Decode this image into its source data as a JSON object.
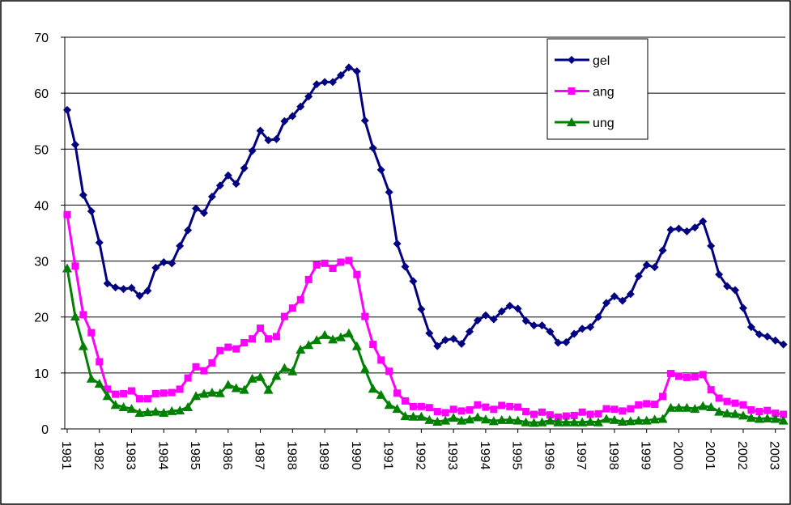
{
  "chart_data": {
    "type": "line",
    "categories": [
      "1981",
      null,
      null,
      null,
      "1982",
      null,
      null,
      null,
      "1983",
      null,
      null,
      null,
      "1984",
      null,
      null,
      null,
      "1985",
      null,
      null,
      null,
      "1986",
      null,
      null,
      null,
      "1987",
      null,
      null,
      null,
      "1988",
      null,
      null,
      null,
      "1989",
      null,
      null,
      null,
      "1990",
      null,
      null,
      null,
      "1991",
      null,
      null,
      null,
      "1992",
      null,
      null,
      null,
      "1993",
      null,
      null,
      null,
      "1994",
      null,
      null,
      null,
      "1995",
      null,
      null,
      null,
      "1996",
      null,
      null,
      null,
      "1997",
      null,
      null,
      null,
      "1998",
      null,
      null,
      null,
      "1999",
      null,
      null,
      null,
      "2000",
      null,
      null,
      null,
      "2001",
      null,
      null,
      null,
      "2002",
      null,
      null,
      null,
      "2003",
      null
    ],
    "series": [
      {
        "name": "gel",
        "color": "#000080",
        "marker": "diamond",
        "values": [
          57,
          50.8,
          41.8,
          38.9,
          33.3,
          26,
          25.3,
          25,
          25.2,
          23.8,
          24.7,
          28.8,
          29.8,
          29.6,
          32.7,
          35.5,
          39.4,
          38.6,
          41.5,
          43.5,
          45.3,
          43.8,
          46.6,
          49.7,
          53.3,
          51.6,
          51.8,
          55,
          55.9,
          57.6,
          59.4,
          61.6,
          62,
          62,
          63.2,
          64.6,
          63.9,
          55.1,
          50.2,
          46.3,
          42.3,
          33.1,
          29,
          26.4,
          21.4,
          17.1,
          14.8,
          15.9,
          16.1,
          15.2,
          17.4,
          19.4,
          20.3,
          19.6,
          21,
          22,
          21.5,
          19.3,
          18.5,
          18.5,
          17.4,
          15.4,
          15.5,
          17,
          17.9,
          18.2,
          20,
          22.5,
          23.7,
          22.9,
          24.1,
          27.3,
          29.3,
          28.9,
          31.9,
          35.6,
          35.8,
          35.3,
          36,
          37.1,
          32.7,
          27.6,
          25.5,
          24.8,
          21.6,
          18.2,
          16.9,
          16.5,
          15.8,
          15.1
        ]
      },
      {
        "name": "ang",
        "color": "#ff00ff",
        "marker": "square",
        "values": [
          38.3,
          29.1,
          20.4,
          17.2,
          12,
          7.1,
          6.2,
          6.3,
          6.8,
          5.4,
          5.4,
          6.3,
          6.4,
          6.5,
          7.1,
          9.1,
          11.1,
          10.4,
          11.8,
          14,
          14.6,
          14.3,
          15.4,
          16.1,
          18,
          16.1,
          16.5,
          20.1,
          21.6,
          23.1,
          26.7,
          29.3,
          29.6,
          28.7,
          29.8,
          30.1,
          27.6,
          20.1,
          15.1,
          12.3,
          10.3,
          6.4,
          5,
          4,
          4,
          3.8,
          3.1,
          2.9,
          3.5,
          3.2,
          3.4,
          4.3,
          3.9,
          3.5,
          4.2,
          4,
          3.9,
          3.1,
          2.6,
          3,
          2.5,
          2.1,
          2.3,
          2.4,
          3,
          2.6,
          2.7,
          3.6,
          3.5,
          3.2,
          3.6,
          4.3,
          4.5,
          4.4,
          5.8,
          9.9,
          9.4,
          9.2,
          9.3,
          9.7,
          7,
          5.5,
          4.9,
          4.6,
          4.3,
          3.4,
          3.1,
          3.3,
          2.8,
          2.6
        ]
      },
      {
        "name": "ung",
        "color": "#008000",
        "marker": "triangle",
        "values": [
          28.7,
          20.1,
          14.8,
          9,
          8.1,
          5.9,
          4.3,
          3.9,
          3.6,
          2.9,
          3,
          3.1,
          2.9,
          3.2,
          3.3,
          3.9,
          5.9,
          6.3,
          6.5,
          6.4,
          7.9,
          7.3,
          7,
          9,
          9.3,
          7,
          9.5,
          10.9,
          10.3,
          14.2,
          15,
          15.9,
          16.8,
          16,
          16.4,
          17.1,
          14.8,
          10.7,
          7.2,
          6.1,
          4.3,
          3.6,
          2.3,
          2.2,
          2.2,
          1.6,
          1.3,
          1.5,
          2,
          1.5,
          1.7,
          2.1,
          1.7,
          1.4,
          1.6,
          1.6,
          1.5,
          1.2,
          1.1,
          1.2,
          1.5,
          1.2,
          1.2,
          1.2,
          1.2,
          1.3,
          1.2,
          1.8,
          1.6,
          1.3,
          1.4,
          1.5,
          1.5,
          1.7,
          1.8,
          3.8,
          3.8,
          3.8,
          3.6,
          4.1,
          3.9,
          3.1,
          2.8,
          2.7,
          2.4,
          2,
          1.8,
          1.9,
          1.8,
          1.5
        ]
      }
    ],
    "ylim": [
      0,
      70
    ],
    "yticks": [
      0,
      10,
      20,
      30,
      40,
      50,
      60,
      70
    ],
    "grid": true,
    "legend": "upper-right"
  }
}
